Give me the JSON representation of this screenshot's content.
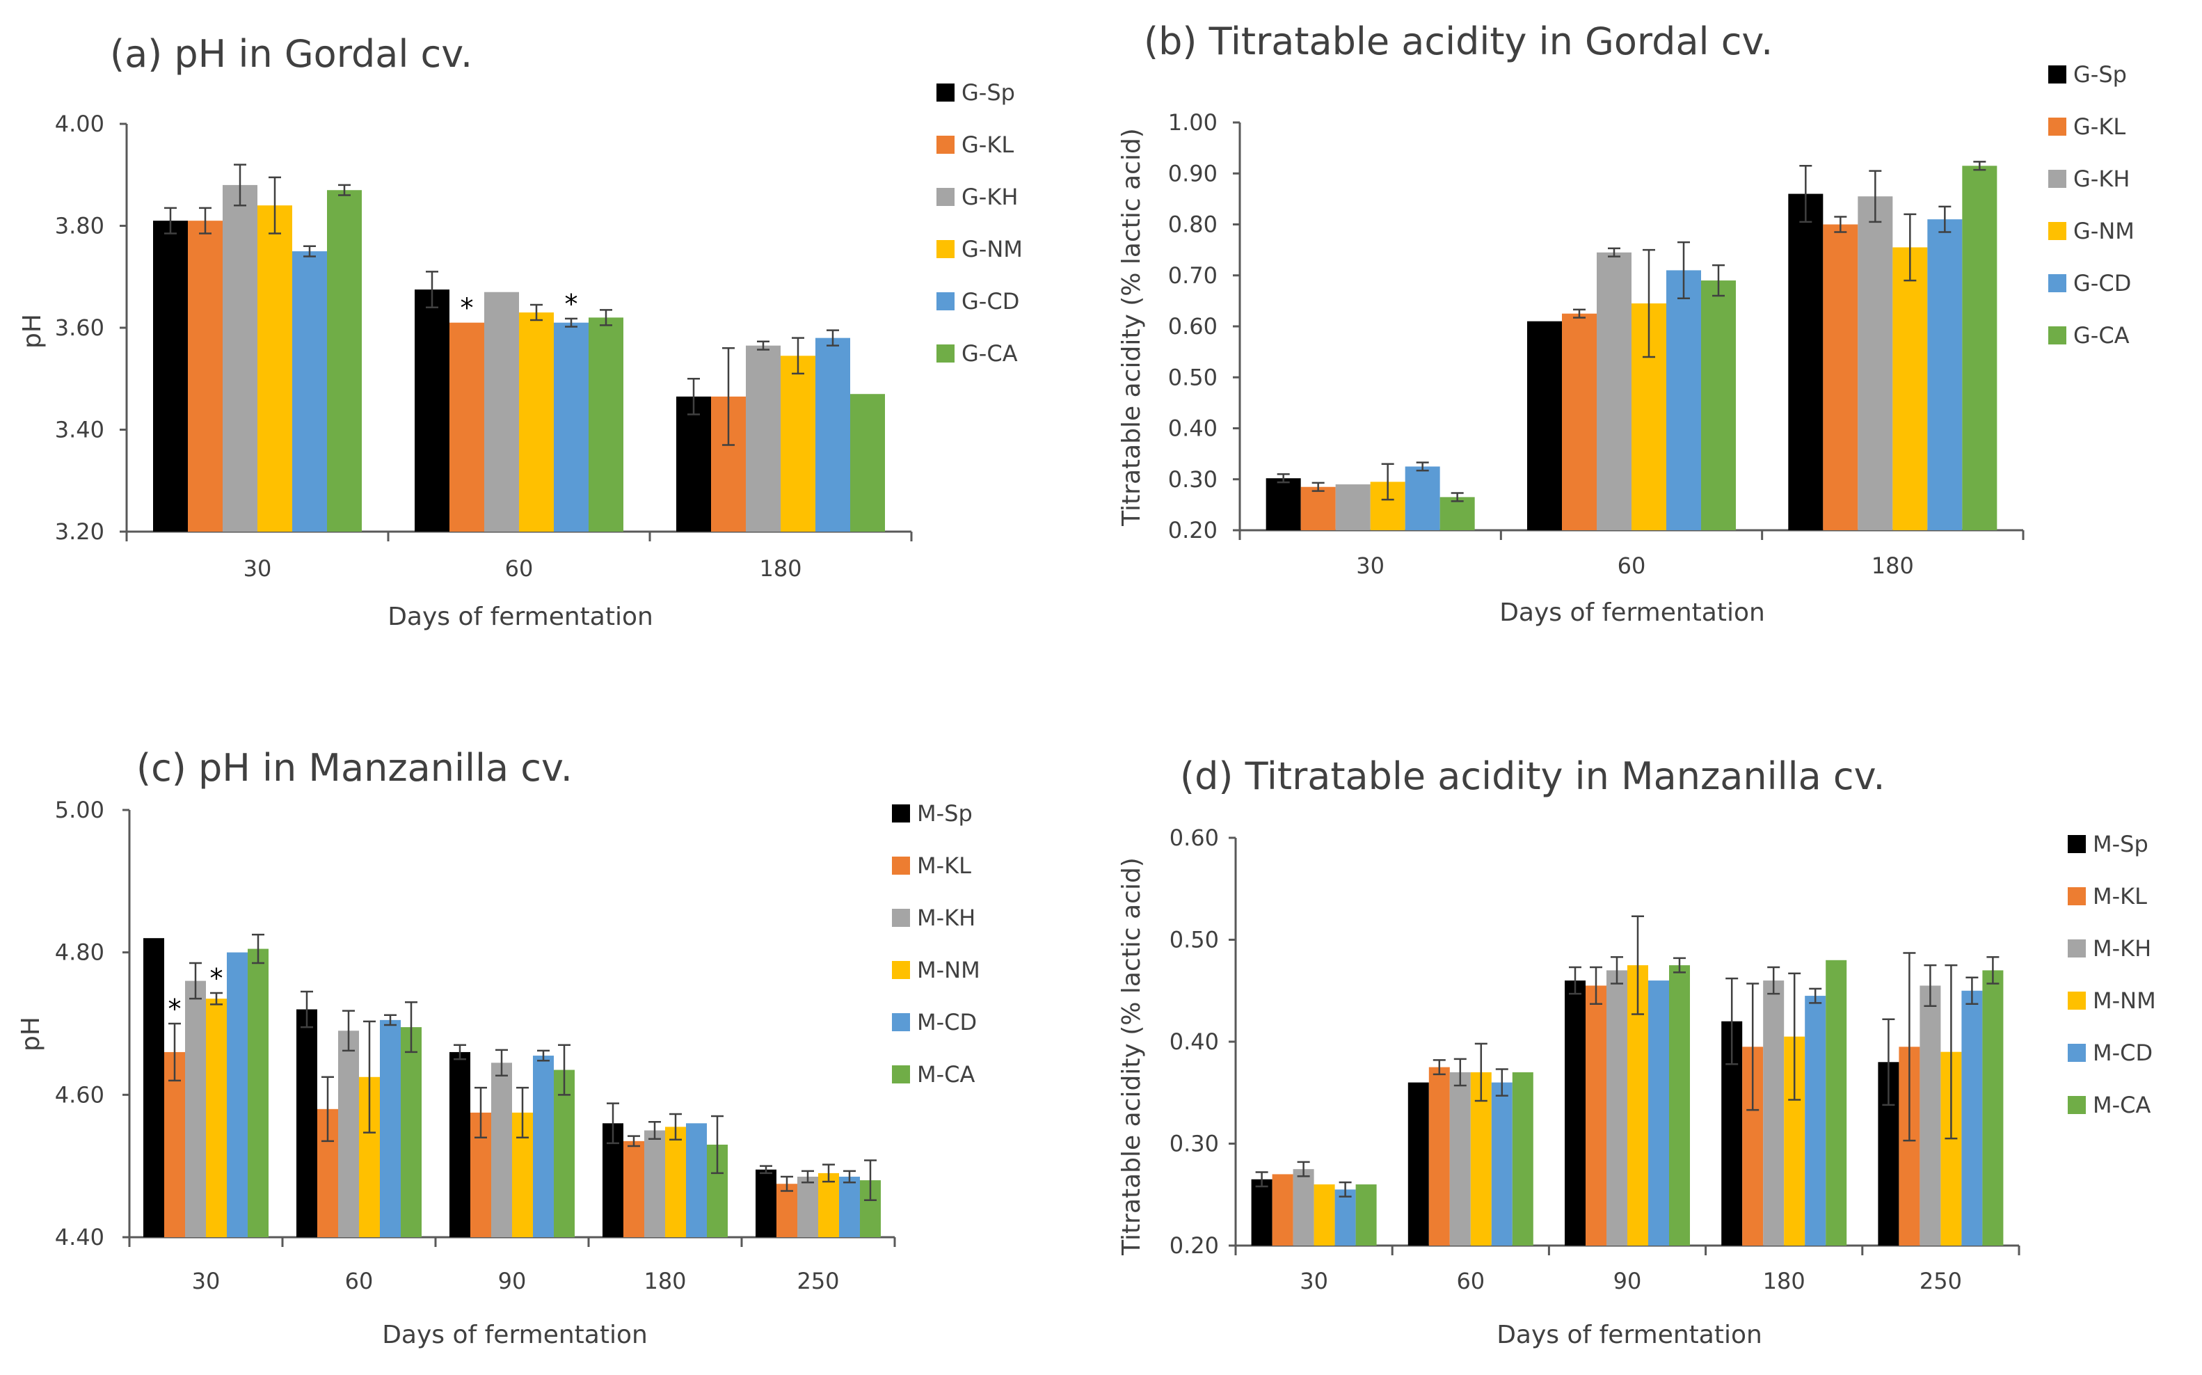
{
  "chart_data": [
    {
      "id": "a",
      "type": "bar",
      "title": "(a) pH in Gordal cv.",
      "xlabel": "Days of fermentation",
      "ylabel": "pH",
      "ylim": [
        3.2,
        4.0
      ],
      "yticks": [
        "3.20",
        "3.40",
        "3.60",
        "3.80",
        "4.00"
      ],
      "categories": [
        "30",
        "60",
        "180"
      ],
      "series": [
        {
          "name": "G-Sp",
          "color": "#000000",
          "values": [
            3.81,
            3.675,
            3.465
          ],
          "errors": [
            0.025,
            0.035,
            0.035
          ]
        },
        {
          "name": "G-KL",
          "color": "#ED7D31",
          "values": [
            3.81,
            3.61,
            3.465
          ],
          "errors": [
            0.025,
            0.0,
            0.095
          ]
        },
        {
          "name": "G-KH",
          "color": "#A5A5A5",
          "values": [
            3.88,
            3.67,
            3.565
          ],
          "errors": [
            0.04,
            0.0,
            0.008
          ]
        },
        {
          "name": "G-NM",
          "color": "#FFC000",
          "values": [
            3.84,
            3.63,
            3.545
          ],
          "errors": [
            0.055,
            0.015,
            0.035
          ]
        },
        {
          "name": "G-CD",
          "color": "#5B9BD5",
          "values": [
            3.75,
            3.61,
            3.58
          ],
          "errors": [
            0.01,
            0.008,
            0.015
          ]
        },
        {
          "name": "G-CA",
          "color": "#70AD47",
          "values": [
            3.87,
            3.62,
            3.47
          ],
          "errors": [
            0.01,
            0.015,
            0.0
          ]
        }
      ],
      "annotations": [
        {
          "text": "*",
          "category": "60",
          "series": "G-KL"
        },
        {
          "text": "*",
          "category": "60",
          "series": "G-CD"
        }
      ]
    },
    {
      "id": "b",
      "type": "bar",
      "title": "(b) Titratable acidity in Gordal cv.",
      "xlabel": "Days of fermentation",
      "ylabel": "Titratable acidity (% lactic acid)",
      "ylim": [
        0.2,
        1.0
      ],
      "yticks": [
        "0.20",
        "0.30",
        "0.40",
        "0.50",
        "0.60",
        "0.70",
        "0.80",
        "0.90",
        "1.00"
      ],
      "categories": [
        "30",
        "60",
        "180"
      ],
      "series": [
        {
          "name": "G-Sp",
          "color": "#000000",
          "values": [
            0.302,
            0.61,
            0.86
          ],
          "errors": [
            0.008,
            0.0,
            0.055
          ]
        },
        {
          "name": "G-KL",
          "color": "#ED7D31",
          "values": [
            0.285,
            0.625,
            0.8
          ],
          "errors": [
            0.008,
            0.008,
            0.015
          ]
        },
        {
          "name": "G-KH",
          "color": "#A5A5A5",
          "values": [
            0.29,
            0.745,
            0.855
          ],
          "errors": [
            0.0,
            0.008,
            0.05
          ]
        },
        {
          "name": "G-NM",
          "color": "#FFC000",
          "values": [
            0.295,
            0.645,
            0.755
          ],
          "errors": [
            0.035,
            0.105,
            0.065
          ]
        },
        {
          "name": "G-CD",
          "color": "#5B9BD5",
          "values": [
            0.325,
            0.71,
            0.81
          ],
          "errors": [
            0.008,
            0.055,
            0.025
          ]
        },
        {
          "name": "G-CA",
          "color": "#70AD47",
          "values": [
            0.265,
            0.69,
            0.915
          ],
          "errors": [
            0.008,
            0.03,
            0.008
          ]
        }
      ]
    },
    {
      "id": "c",
      "type": "bar",
      "title": "(c) pH in Manzanilla cv.",
      "xlabel": "Days of fermentation",
      "ylabel": "pH",
      "ylim": [
        4.4,
        5.0
      ],
      "yticks": [
        "4.40",
        "4.60",
        "4.80",
        "5.00"
      ],
      "categories": [
        "30",
        "60",
        "90",
        "180",
        "250"
      ],
      "series": [
        {
          "name": "M-Sp",
          "color": "#000000",
          "values": [
            4.82,
            4.72,
            4.66,
            4.56,
            4.495
          ],
          "errors": [
            0.0,
            0.025,
            0.01,
            0.028,
            0.005
          ]
        },
        {
          "name": "M-KL",
          "color": "#ED7D31",
          "values": [
            4.66,
            4.58,
            4.575,
            4.535,
            4.475
          ],
          "errors": [
            0.04,
            0.045,
            0.035,
            0.007,
            0.01
          ]
        },
        {
          "name": "M-KH",
          "color": "#A5A5A5",
          "values": [
            4.76,
            4.69,
            4.645,
            4.55,
            4.485
          ],
          "errors": [
            0.025,
            0.028,
            0.018,
            0.012,
            0.008
          ]
        },
        {
          "name": "M-NM",
          "color": "#FFC000",
          "values": [
            4.735,
            4.625,
            4.575,
            4.555,
            4.49
          ],
          "errors": [
            0.008,
            0.078,
            0.035,
            0.018,
            0.012
          ]
        },
        {
          "name": "M-CD",
          "color": "#5B9BD5",
          "values": [
            4.8,
            4.705,
            4.655,
            4.56,
            4.485
          ],
          "errors": [
            0.0,
            0.007,
            0.007,
            0.0,
            0.008
          ]
        },
        {
          "name": "M-CA",
          "color": "#70AD47",
          "values": [
            4.805,
            4.695,
            4.635,
            4.53,
            4.48
          ],
          "errors": [
            0.02,
            0.035,
            0.035,
            0.04,
            0.028
          ]
        }
      ],
      "annotations": [
        {
          "text": "*",
          "category": "30",
          "series": "M-KL"
        },
        {
          "text": "*",
          "category": "30",
          "series": "M-NM"
        }
      ]
    },
    {
      "id": "d",
      "type": "bar",
      "title": "(d) Titratable acidity in Manzanilla cv.",
      "xlabel": "Days of fermentation",
      "ylabel": "Titratable acidity (% lactic acid)",
      "ylim": [
        0.2,
        0.6
      ],
      "yticks": [
        "0.20",
        "0.30",
        "0.40",
        "0.50",
        "0.60"
      ],
      "categories": [
        "30",
        "60",
        "90",
        "180",
        "250"
      ],
      "series": [
        {
          "name": "M-Sp",
          "color": "#000000",
          "values": [
            0.265,
            0.36,
            0.46,
            0.42,
            0.38
          ],
          "errors": [
            0.007,
            0.0,
            0.013,
            0.042,
            0.042
          ]
        },
        {
          "name": "M-KL",
          "color": "#ED7D31",
          "values": [
            0.27,
            0.375,
            0.455,
            0.395,
            0.395
          ],
          "errors": [
            0.0,
            0.007,
            0.018,
            0.062,
            0.092
          ]
        },
        {
          "name": "M-KH",
          "color": "#A5A5A5",
          "values": [
            0.275,
            0.37,
            0.47,
            0.46,
            0.455
          ],
          "errors": [
            0.007,
            0.013,
            0.013,
            0.013,
            0.02
          ]
        },
        {
          "name": "M-NM",
          "color": "#FFC000",
          "values": [
            0.26,
            0.37,
            0.475,
            0.405,
            0.39
          ],
          "errors": [
            0.0,
            0.028,
            0.048,
            0.062,
            0.085
          ]
        },
        {
          "name": "M-CD",
          "color": "#5B9BD5",
          "values": [
            0.255,
            0.36,
            0.46,
            0.445,
            0.45
          ],
          "errors": [
            0.007,
            0.013,
            0.0,
            0.007,
            0.013
          ]
        },
        {
          "name": "M-CA",
          "color": "#70AD47",
          "values": [
            0.26,
            0.37,
            0.475,
            0.48,
            0.47
          ],
          "errors": [
            0.0,
            0.0,
            0.007,
            0.0,
            0.013
          ]
        }
      ]
    }
  ]
}
